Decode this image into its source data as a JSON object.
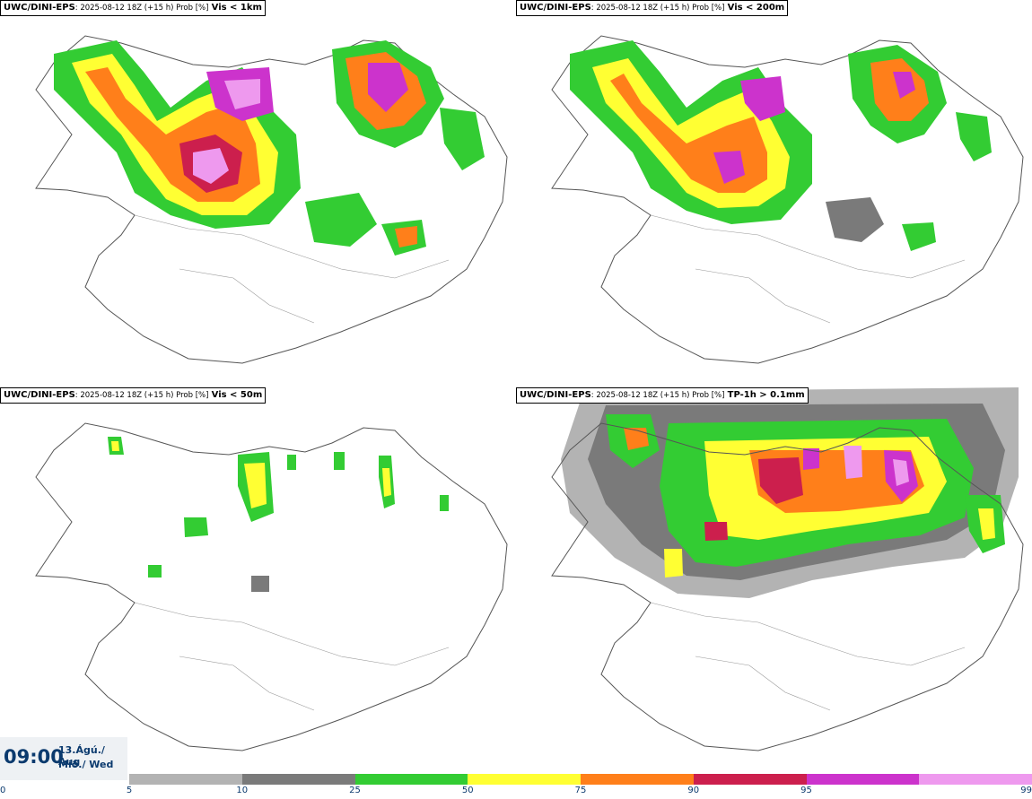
{
  "panels": [
    {
      "model": "UWC/DINI-EPS",
      "run": ": 2025-08-12 18Z (+15 h) Prob [%]",
      "condition": "Vis < 1km"
    },
    {
      "model": "UWC/DINI-EPS",
      "run": ": 2025-08-12 18Z (+15 h) Prob [%]",
      "condition": "Vis < 200m"
    },
    {
      "model": "UWC/DINI-EPS",
      "run": ": 2025-08-12 18Z (+15 h) Prob [%]",
      "condition": "Vis < 50m"
    },
    {
      "model": "UWC/DINI-EPS",
      "run": ": 2025-08-12 18Z (+15 h) Prob [%]",
      "condition": "TP-1h > 0.1mm"
    }
  ],
  "valid_time": {
    "time": "09:00",
    "date_line1": "13.Ágú./ Aug",
    "date_line2": "Mið./ Wed"
  },
  "colorbar": {
    "ticks": [
      "0",
      "5",
      "10",
      "25",
      "50",
      "75",
      "90",
      "95",
      "99"
    ],
    "colors": [
      "#b3b3b3",
      "#7a7a7a",
      "#33cc33",
      "#ffff33",
      "#ff7f1a",
      "#cc1f4d",
      "#cc33cc",
      "#ee99ee"
    ]
  }
}
